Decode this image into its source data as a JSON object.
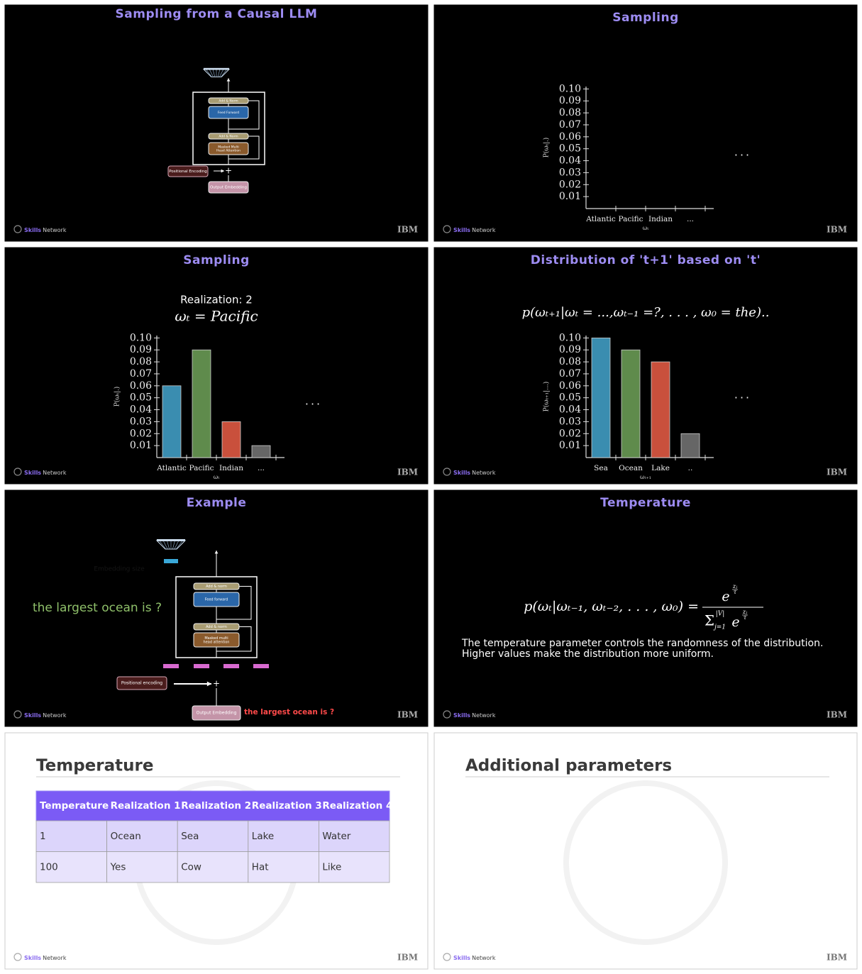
{
  "footer": {
    "brand_bold": "Skills",
    "brand": "Network",
    "logo": "IBM"
  },
  "slides": [
    {
      "title": "Sampling from a Causal LLM",
      "diagram": {
        "add_norm": "Add & Norm",
        "feed_forward": "Feed Forward",
        "masked_attention": [
          "Masked Multi",
          "Head Attention"
        ],
        "positional_encoding": "Positional Encoding",
        "output_embedding": "Output Embedding"
      }
    },
    {
      "title": "Sampling",
      "chart_data": {
        "type": "bar",
        "categories": [
          "Atlantic",
          "Pacific",
          "Indian",
          "..."
        ],
        "ylabel": "P(ωₜ|.)",
        "xlabel": "ωₜ",
        "ellipsis": "...",
        "ylim": [
          0,
          0.102
        ],
        "yticks": [
          0.01,
          0.02,
          0.03,
          0.04,
          0.05,
          0.06,
          0.07,
          0.08,
          0.09,
          {
            "value": 0.1,
            "label": "0.10"
          }
        ]
      }
    },
    {
      "title": "Sampling",
      "realization": "Realization: 2",
      "formula": "ωₜ = Pacific",
      "chart_data": {
        "type": "bar",
        "categories": [
          "Atlantic",
          "Pacific",
          "Indian",
          "..."
        ],
        "values": [
          0.06,
          0.09,
          0.03,
          0.01
        ],
        "colors": [
          "#3a8db0",
          "#5f8b4c",
          "#c9503c",
          "#666666"
        ],
        "ylabel": "P(ωₜ|.)",
        "xlabel": "ωₜ",
        "ellipsis": "...",
        "ylim": [
          0,
          0.102
        ],
        "yticks": [
          0.01,
          0.02,
          0.03,
          0.04,
          0.05,
          0.06,
          0.07,
          0.08,
          0.09,
          {
            "value": 0.1,
            "label": "0.10"
          }
        ]
      }
    },
    {
      "title": "Distribution of 't+1' based on 't'",
      "formula": "p(ωₜ₊₁|ωₜ = ...,ωₜ₋₁ =?, . . . , ω₀ = the)..",
      "chart_data": {
        "type": "bar",
        "categories": [
          "Sea",
          "Ocean",
          "Lake",
          ".."
        ],
        "values": [
          0.1,
          0.09,
          0.08,
          0.02
        ],
        "colors": [
          "#3a8db0",
          "#5f8b4c",
          "#c9503c",
          "#666666"
        ],
        "ylabel": "P(ωₜ₊₁|...)",
        "xlabel": "ωₜ₊₁",
        "ellipsis": "...",
        "ylim": [
          0,
          0.102
        ],
        "yticks": [
          0.01,
          0.02,
          0.03,
          0.04,
          0.05,
          0.06,
          0.07,
          0.08,
          0.09,
          {
            "value": 0.1,
            "label": "0.10"
          }
        ]
      }
    },
    {
      "title": "Example",
      "question": "the largest ocean is ?",
      "faint_label": "Embedding size",
      "prompt": "the largest ocean is ?",
      "diagram": {
        "add_norm": "Add & norm",
        "feed_forward": "Feed forward",
        "masked_attention": [
          "Masked multi",
          "head attention"
        ],
        "positional_encoding": "Positional encoding",
        "output_embedding": "Output Embedding"
      }
    },
    {
      "title": "Temperature",
      "formula": {
        "lhs": "p(ωₜ|ωₜ₋₁, ωₜ₋₂, . . . , ω₀) =",
        "base": "e",
        "exp_num": "zⱼ",
        "exp_den": "τ",
        "sum": "Σ",
        "sum_upper": "|V|",
        "sum_lower": "j=1"
      },
      "description": [
        "The temperature parameter controls the randomness of the distribution.",
        "Higher values make the distribution more uniform."
      ]
    },
    {
      "title": "Temperature",
      "table": {
        "header": [
          "Temperature",
          "Realization 1",
          "Realization 2",
          "Realization 3",
          "Realization 4"
        ],
        "rows": [
          [
            1,
            "Ocean",
            "Sea",
            "Lake",
            "Water"
          ],
          [
            100,
            "Yes",
            "Cow",
            "Hat",
            "Like"
          ]
        ]
      }
    },
    {
      "title": "Additional parameters"
    }
  ]
}
